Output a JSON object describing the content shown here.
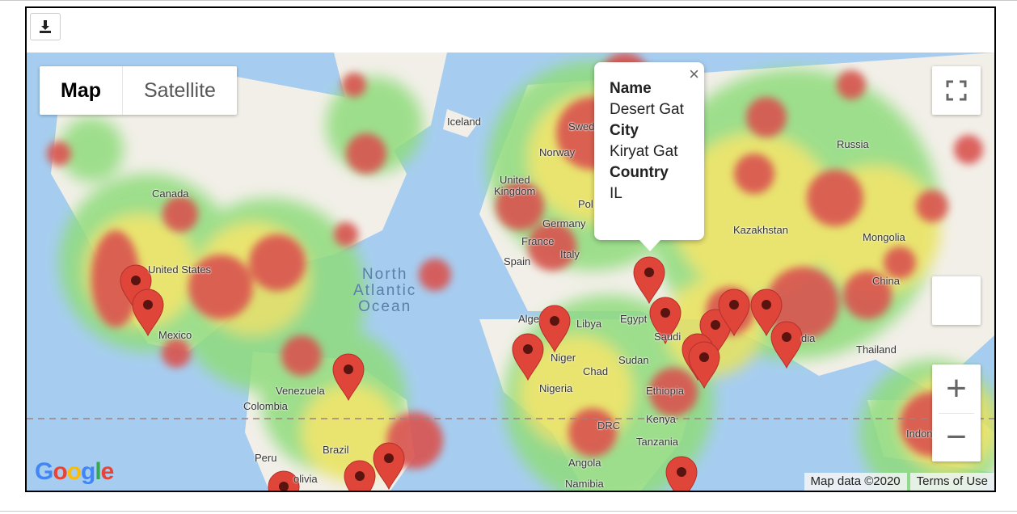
{
  "toolbar": {
    "download_icon": "download-icon"
  },
  "map_type": {
    "map_label": "Map",
    "satellite_label": "Satellite",
    "active": "Map"
  },
  "controls": {
    "fullscreen_icon": "fullscreen-icon",
    "zoom_in": "+",
    "zoom_out": "−"
  },
  "popup": {
    "name_label": "Name",
    "name_value": "Desert Gat",
    "city_label": "City",
    "city_value": "Kiryat Gat",
    "country_label": "Country",
    "country_value": "IL",
    "close": "×"
  },
  "attribution": {
    "map_data": "Map data ©2020",
    "terms": "Terms of Use"
  },
  "logo": "Google",
  "colors": {
    "water": "#a6cdf0",
    "land": "#f3f1ec",
    "heat_red": "#d9534f",
    "heat_yellow": "#e8e35a",
    "heat_green": "#8fdc7c",
    "marker": "#e0453a"
  },
  "place_labels": {
    "iceland": "Iceland",
    "sweden": "Swed",
    "norway": "Norway",
    "russia": "Russia",
    "united_kingdom_1": "United",
    "united_kingdom_2": "Kingdom",
    "poland": "Pol",
    "germany": "Germany",
    "france": "France",
    "italy": "Italy",
    "spain": "Spain",
    "kazakhstan": "Kazakhstan",
    "mongolia": "Mongolia",
    "china": "China",
    "canada": "Canada",
    "united_states": "United States",
    "mexico": "Mexico",
    "algeria": "Alge",
    "libya": "Libya",
    "egypt": "Egypt",
    "saudi": "Saudi",
    "niger": "Niger",
    "sudan": "Sudan",
    "chad": "Chad",
    "nigeria": "Nigeria",
    "ethiopia": "Ethiopia",
    "india": "dia",
    "thailand": "Thailand",
    "venezuela": "Venezuela",
    "colombia": "Colombia",
    "kenya": "Kenya",
    "drc": "DRC",
    "tanzania": "Tanzania",
    "indonesia": "Indon",
    "peru": "Peru",
    "brazil": "Brazil",
    "bolivia": "olivia",
    "angola": "Angola",
    "namibia": "Namibia"
  },
  "ocean_label": {
    "line1": "North",
    "line2": "Atlantic",
    "line3": "Ocean"
  }
}
